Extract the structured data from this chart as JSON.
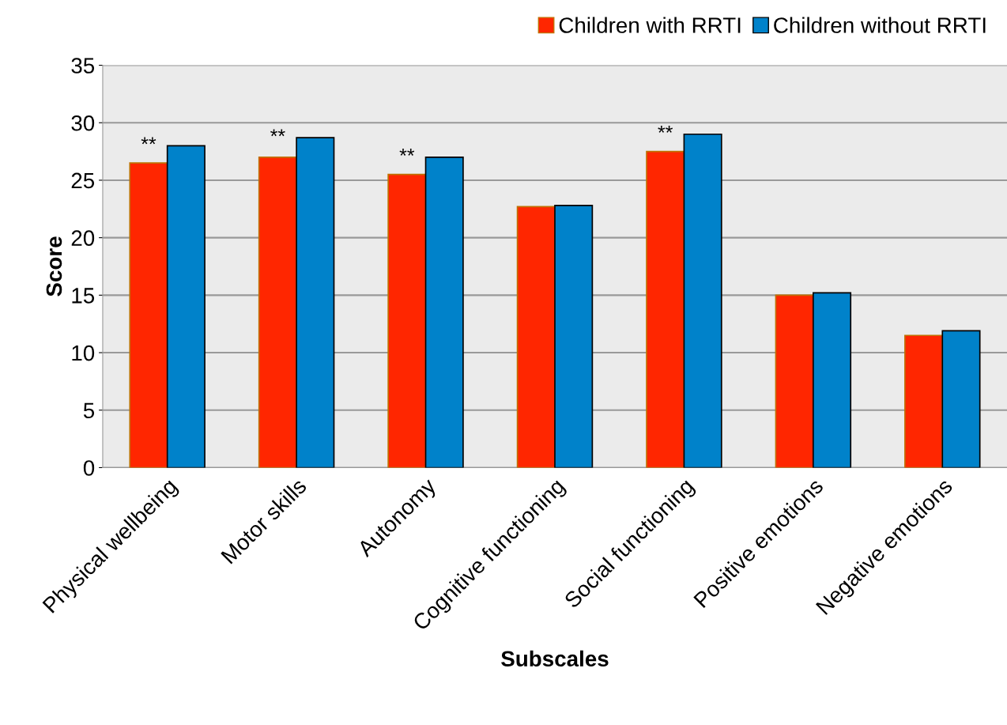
{
  "chart_data": {
    "type": "bar",
    "xlabel": "Subscales",
    "ylabel": "Score",
    "categories": [
      "Physical wellbeing",
      "Motor skills",
      "Autonomy",
      "Cognitive functioning",
      "Social functioning",
      "Positive emotions",
      "Negative emotions"
    ],
    "series": [
      {
        "name": "Children with RRTI",
        "color": "#ff2600",
        "values": [
          26.5,
          27.0,
          25.5,
          22.7,
          27.5,
          15.0,
          11.5
        ]
      },
      {
        "name": "Children without RRTI",
        "color": "#0082ca",
        "values": [
          28.0,
          28.7,
          27.0,
          22.8,
          29.0,
          15.2,
          11.9
        ]
      }
    ],
    "annotations": [
      {
        "text": "**",
        "x": "Physical wellbeing",
        "y": 28.0
      },
      {
        "text": "**",
        "x": "Motor skills",
        "y": 28.7
      },
      {
        "text": "**",
        "x": "Autonomy",
        "y": 27.0
      },
      {
        "text": "**",
        "x": "Social functioning",
        "y": 29.0
      }
    ],
    "ylim": [
      0,
      35
    ],
    "yticks": [
      0,
      5,
      10,
      15,
      20,
      25,
      30,
      35
    ],
    "grid": "y",
    "legend": "top right"
  }
}
